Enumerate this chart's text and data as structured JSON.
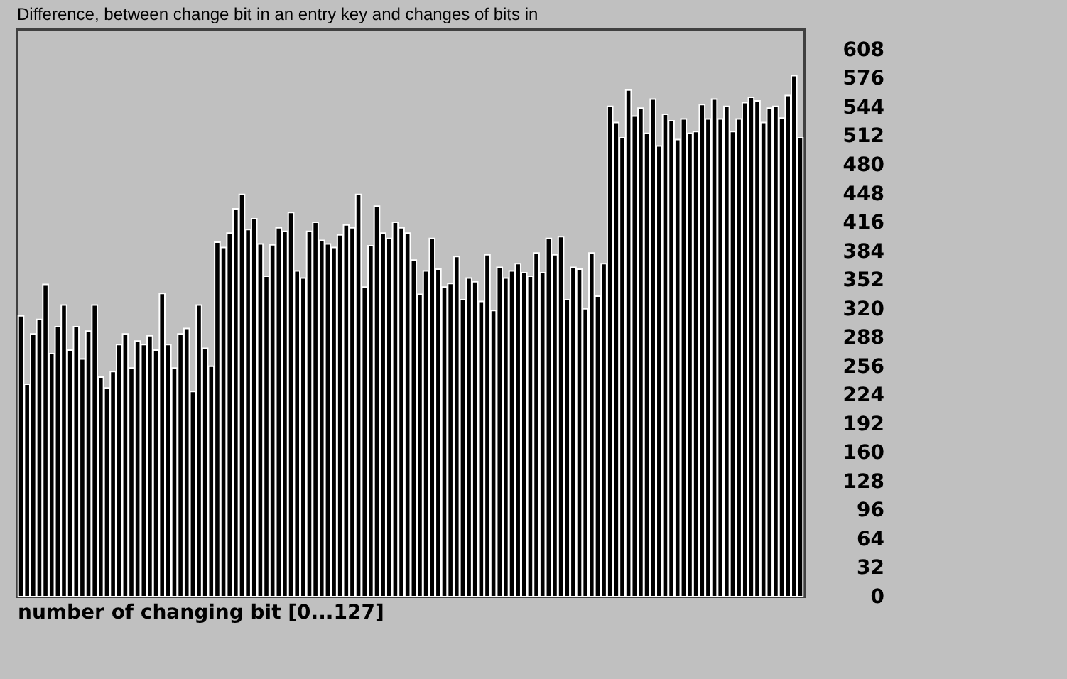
{
  "chart_data": {
    "type": "bar",
    "title": "Difference, between change bit in an entry key and changes of bits in",
    "xlabel": "number of changing bit [0...127]",
    "categories": [
      null,
      null,
      null,
      null,
      null,
      null,
      null,
      null,
      null,
      null,
      null,
      null,
      null,
      null,
      null,
      null,
      null,
      null,
      null,
      null,
      null,
      null,
      null,
      null,
      null,
      null,
      null,
      null,
      null,
      null,
      null,
      null,
      null,
      null,
      null,
      null,
      null,
      null,
      null,
      null,
      null,
      null,
      null,
      null,
      null,
      null,
      null,
      null,
      null,
      null,
      null,
      null,
      null,
      null,
      null,
      null,
      null,
      null,
      null,
      null,
      null,
      null,
      null,
      null,
      null,
      null,
      null,
      null,
      null,
      null,
      null,
      null,
      null,
      null,
      null,
      null,
      null,
      null,
      null,
      null,
      null,
      null,
      null,
      null,
      null,
      null,
      null,
      null,
      null,
      null,
      null,
      null,
      null,
      null,
      null,
      null,
      null,
      null,
      null,
      null,
      null,
      null,
      null,
      null,
      null,
      null,
      null,
      null,
      null,
      null,
      null,
      null,
      null,
      null,
      null,
      null,
      null,
      null,
      null,
      null,
      null,
      null,
      null,
      null,
      null,
      null,
      null,
      null
    ],
    "values": [
      312,
      236,
      292,
      308,
      347,
      270,
      300,
      324,
      274,
      300,
      264,
      295,
      324,
      244,
      232,
      250,
      280,
      292,
      254,
      284,
      280,
      290,
      274,
      337,
      280,
      254,
      292,
      298,
      228,
      324,
      276,
      256,
      394,
      388,
      404,
      431,
      447,
      408,
      420,
      392,
      356,
      391,
      410,
      406,
      427,
      362,
      354,
      406,
      416,
      396,
      392,
      388,
      402,
      413,
      410,
      447,
      344,
      390,
      434,
      404,
      398,
      416,
      410,
      404,
      374,
      336,
      362,
      398,
      364,
      344,
      348,
      378,
      330,
      354,
      350,
      328,
      380,
      318,
      366,
      354,
      362,
      370,
      360,
      356,
      382,
      360,
      398,
      380,
      400,
      330,
      366,
      364,
      320,
      382,
      334,
      370,
      545,
      527,
      510,
      563,
      534,
      543,
      515,
      553,
      501,
      536,
      529,
      508,
      531,
      515,
      517,
      547,
      531,
      553,
      531,
      545,
      517,
      531,
      549,
      555,
      551,
      527,
      543,
      545,
      532,
      557,
      579,
      510
    ],
    "color": "#000000",
    "ylim": [
      0,
      630
    ],
    "yticks": [
      0,
      32,
      64,
      96,
      128,
      160,
      192,
      224,
      256,
      288,
      320,
      352,
      384,
      416,
      448,
      480,
      512,
      544,
      576,
      608
    ],
    "grid": false,
    "tick_labels": "y"
  }
}
